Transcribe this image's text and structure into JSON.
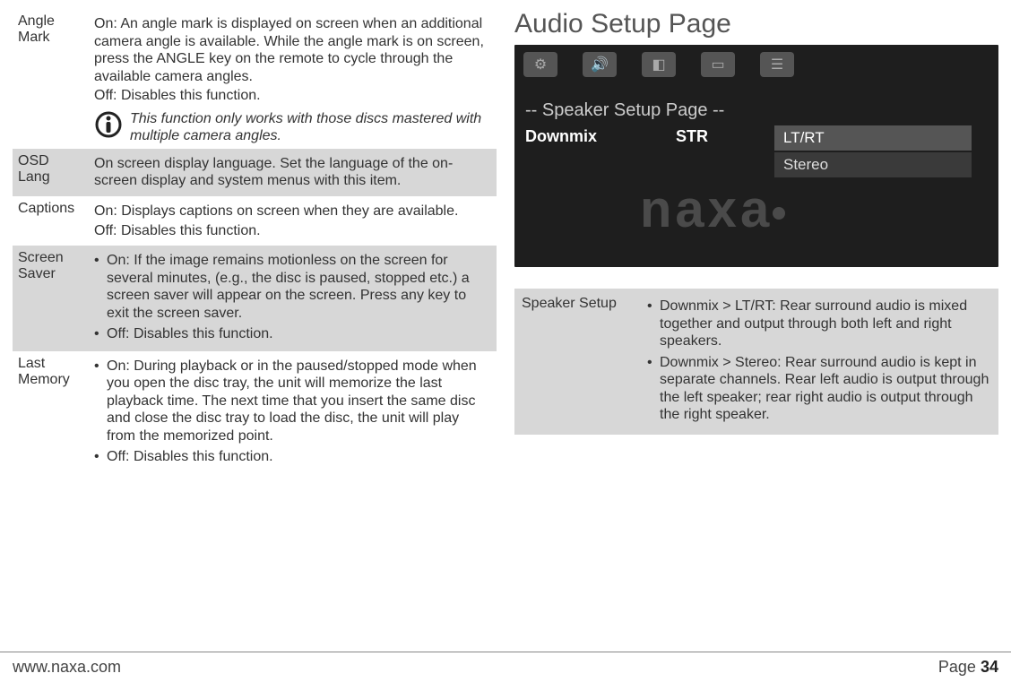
{
  "left": {
    "rows": [
      {
        "key": "angle_mark",
        "label": "Angle Mark",
        "shaded": false,
        "paras": [
          "On: An angle mark is displayed on screen when an additional camera angle is available.  While the angle mark is on screen, press the ANGLE key on the remote to cycle through the available camera angles.",
          "Off: Disables this function."
        ],
        "note": "This function only works with those discs mastered with multiple camera angles."
      },
      {
        "key": "osd_lang",
        "label": "OSD Lang",
        "shaded": true,
        "paras": [
          "On screen display language. Set the language of the on-screen display and system menus with this item."
        ]
      },
      {
        "key": "captions",
        "label": "Captions",
        "shaded": false,
        "paras": [
          "On: Displays captions on screen when they are available.",
          "Off: Disables this function."
        ]
      },
      {
        "key": "screen_saver",
        "label": "Screen Saver",
        "shaded": true,
        "bullets": [
          "On: If the image remains motionless on the screen for several minutes, (e.g., the disc is paused, stopped etc.) a screen saver will appear on the screen. Press any key to exit the screen saver.",
          "Off: Disables this function."
        ]
      },
      {
        "key": "last_memory",
        "label": "Last Memory",
        "shaded": false,
        "bullets": [
          "On: During playback or in the paused/stopped mode when you open the disc tray, the unit will memorize the last playback time. The next time that you insert the same disc and close the disc tray to load the disc, the unit will play from the memorized point.",
          "Off: Disables this function."
        ]
      }
    ]
  },
  "right": {
    "title": "Audio Setup Page",
    "screenshot": {
      "breadcrumb": "-- Speaker Setup Page --",
      "menu_label": "Downmix",
      "menu_value": "STR",
      "options": [
        "LT/RT",
        "Stereo"
      ],
      "brand": "naxa"
    },
    "table": {
      "label": "Speaker Setup",
      "bullets": [
        "Downmix > LT/RT: Rear surround audio is mixed together and output through both left and right speakers.",
        "Downmix > Stereo: Rear surround audio is kept in separate channels. Rear left audio is output through the left speaker; rear right audio is output through the right speaker."
      ]
    }
  },
  "footer": {
    "url": "www.naxa.com",
    "page_label": "Page",
    "page_number": "34"
  }
}
